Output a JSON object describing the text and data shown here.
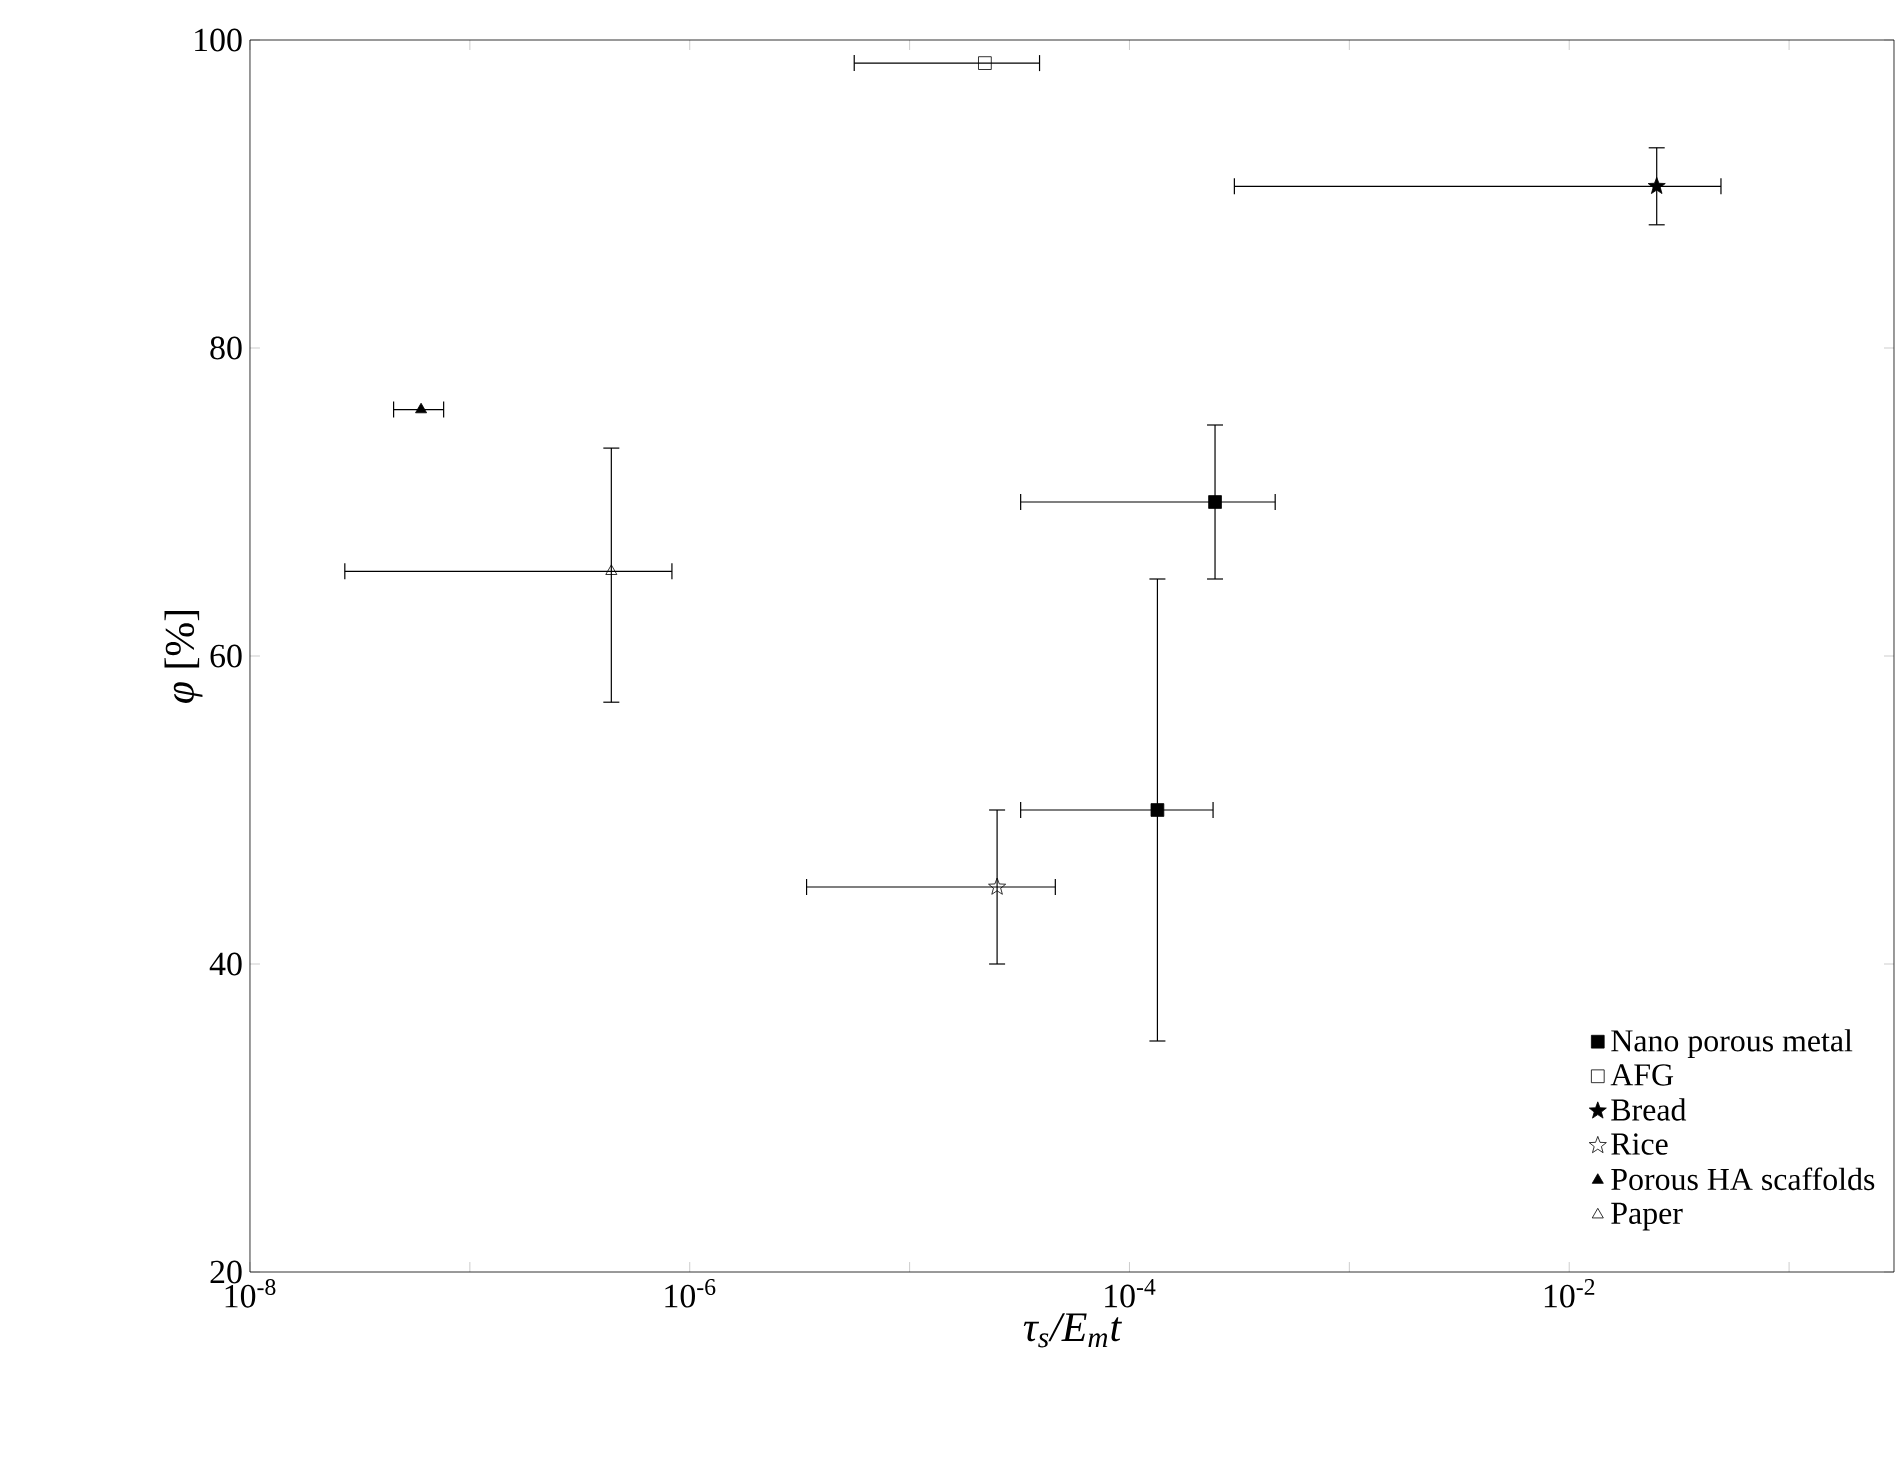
{
  "chart_data": {
    "type": "scatter",
    "xlabel": "τ$_{s}$/E$_{m}$t",
    "ylabel": "*φ* [%]",
    "log": "x",
    "xlim": [
      1e-08,
      0.3
    ],
    "ylim": [
      20,
      100
    ],
    "xticks": [
      {
        "value": 1e-08,
        "label": "10$^{-8}$"
      },
      {
        "value": 1e-07,
        "label": null
      },
      {
        "value": 1e-06,
        "label": "10$^{-6}$"
      },
      {
        "value": 1e-05,
        "label": null
      },
      {
        "value": 0.0001,
        "label": "10$^{-4}$"
      },
      {
        "value": 0.001,
        "label": null
      },
      {
        "value": 0.01,
        "label": "10$^{-2}$"
      },
      {
        "value": 0.1,
        "label": null
      }
    ],
    "yticks": [
      20,
      40,
      60,
      80,
      100
    ],
    "grid": false,
    "legend": "bottom right",
    "series": [
      {
        "name": "Nano porous metal",
        "color": "#000000",
        "marker": "square",
        "x": [
          0.000245,
          0.000134
        ],
        "values": [
          70,
          50
        ],
        "xerrors": [
          [
            3.2e-05,
            0.00046
          ],
          [
            3.2e-05,
            0.00024
          ]
        ],
        "errors": [
          [
            65,
            75
          ],
          [
            35,
            65
          ]
        ]
      },
      {
        "name": "AFG",
        "color": "#000000",
        "marker": "square",
        "x": [
          2.2e-05
        ],
        "values": [
          98.5
        ],
        "xerrors": [
          [
            5.6e-06,
            3.9e-05
          ]
        ],
        "errors": [
          null
        ]
      },
      {
        "name": "Bread",
        "color": "#000000",
        "marker": "star",
        "x": [
          0.025
        ],
        "values": [
          90.5
        ],
        "xerrors": [
          [
            0.0003,
            0.049
          ]
        ],
        "errors": [
          [
            88,
            93
          ]
        ]
      },
      {
        "name": "Rice",
        "color": "#000000",
        "marker": "star",
        "x": [
          2.5e-05
        ],
        "values": [
          45
        ],
        "xerrors": [
          [
            3.4e-06,
            4.6e-05
          ]
        ],
        "errors": [
          [
            40,
            50
          ]
        ]
      },
      {
        "name": "Porous HA scaffolds",
        "color": "#000000",
        "marker": "triangle",
        "x": [
          6e-08
        ],
        "values": [
          76
        ],
        "xerrors": [
          [
            4.5e-08,
            7.6e-08
          ]
        ],
        "errors": [
          null
        ]
      },
      {
        "name": "Paper",
        "color": "#000000",
        "marker": "triangle",
        "x": [
          4.4e-07
        ],
        "values": [
          65.5
        ],
        "xerrors": [
          [
            2.7e-08,
            8.3e-07
          ]
        ],
        "errors": [
          [
            57,
            73.5
          ]
        ]
      }
    ]
  }
}
